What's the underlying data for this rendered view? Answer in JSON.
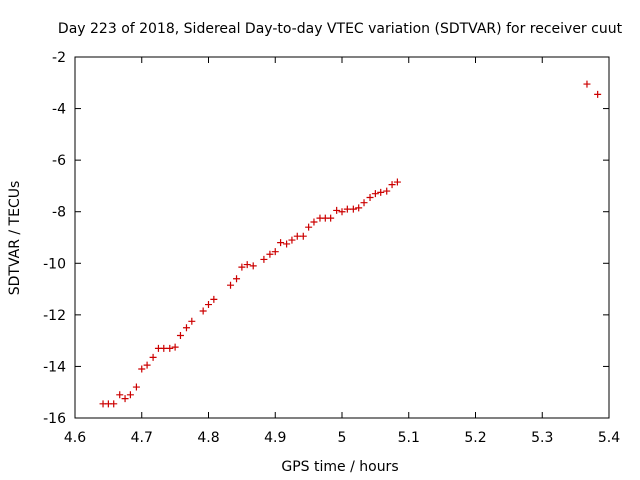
{
  "chart_data": {
    "type": "scatter",
    "title": "Day 223 of 2018, Sidereal Day-to-day VTEC variation (SDTVAR) for receiver cuut",
    "xlabel": "GPS time / hours",
    "ylabel": "SDTVAR / TECUs",
    "xlim": [
      4.6,
      5.4
    ],
    "ylim": [
      -16,
      -2
    ],
    "xticks": [
      4.6,
      4.7,
      4.8,
      4.9,
      5.0,
      5.1,
      5.2,
      5.3,
      5.4
    ],
    "xtick_labels": [
      "4.6",
      "4.7",
      "4.8",
      "4.9",
      "5",
      "5.1",
      "5.2",
      "5.3",
      "5.4"
    ],
    "yticks": [
      -16,
      -14,
      -12,
      -10,
      -8,
      -6,
      -4,
      -2
    ],
    "ytick_labels": [
      "-16",
      "-14",
      "-12",
      "-10",
      "-8",
      "-6",
      "-4",
      "-2"
    ],
    "grid": false,
    "marker": "+",
    "color": "#cc0000",
    "series": [
      {
        "name": "SDTVAR",
        "x": [
          4.642,
          4.65,
          4.658,
          4.667,
          4.675,
          4.683,
          4.692,
          4.7,
          4.708,
          4.717,
          4.725,
          4.733,
          4.742,
          4.75,
          4.758,
          4.767,
          4.775,
          4.792,
          4.8,
          4.808,
          4.833,
          4.842,
          4.85,
          4.858,
          4.867,
          4.883,
          4.892,
          4.9,
          4.908,
          4.917,
          4.925,
          4.933,
          4.942,
          4.95,
          4.958,
          4.967,
          4.975,
          4.983,
          4.992,
          5.0,
          5.008,
          5.017,
          5.025,
          5.033,
          5.042,
          5.05,
          5.058,
          5.067,
          5.075,
          5.083,
          5.367,
          5.383
        ],
        "y": [
          -15.45,
          -15.45,
          -15.45,
          -15.1,
          -15.25,
          -15.1,
          -14.8,
          -14.1,
          -13.95,
          -13.65,
          -13.3,
          -13.3,
          -13.3,
          -13.25,
          -12.8,
          -12.5,
          -12.25,
          -11.85,
          -11.6,
          -11.4,
          -10.85,
          -10.6,
          -10.15,
          -10.05,
          -10.1,
          -9.85,
          -9.65,
          -9.55,
          -9.2,
          -9.25,
          -9.1,
          -8.95,
          -8.95,
          -8.6,
          -8.4,
          -8.25,
          -8.25,
          -8.25,
          -7.95,
          -8.0,
          -7.9,
          -7.9,
          -7.85,
          -7.65,
          -7.45,
          -7.3,
          -7.25,
          -7.2,
          -6.95,
          -6.85,
          -3.05,
          -3.45
        ]
      }
    ]
  }
}
